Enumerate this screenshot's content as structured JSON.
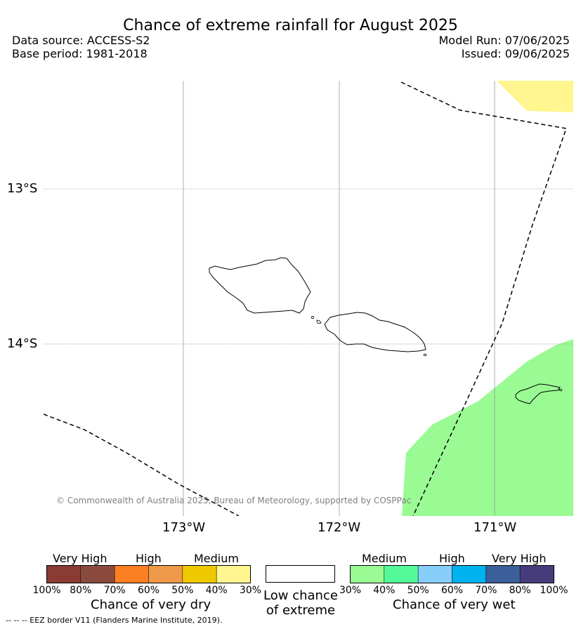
{
  "header": {
    "title": "Chance of extreme rainfall for August 2025",
    "data_source": "Data source: ACCESS-S2",
    "base_period": "Base period: 1981-2018",
    "model_run": "Model Run: 07/06/2025",
    "issued": "Issued: 09/06/2025"
  },
  "map": {
    "lat_labels": [
      "13°S",
      "14°S"
    ],
    "lon_labels": [
      "173°W",
      "172°W",
      "171°W"
    ],
    "copyright": "© Commonwealth of Australia 2025, Bureau of Meteorology, supported by COSPPac",
    "regions": [
      {
        "category": "Medium (30%) chance of very dry",
        "color": "#fff68f",
        "location": "top-right"
      },
      {
        "category": "Medium (30%) chance of very wet",
        "color": "#9afa94",
        "location": "bottom-right"
      }
    ],
    "eez_line": "dashed"
  },
  "legend": {
    "dry": {
      "categories": [
        "Very High",
        "High",
        "Medium"
      ],
      "ticks": [
        "100%",
        "80%",
        "70%",
        "60%",
        "50%",
        "40%",
        "30%"
      ],
      "colors": [
        "#8a3b34",
        "#8a4b3e",
        "#fd7f23",
        "#ee9a4a",
        "#eec900",
        "#fff68f"
      ],
      "label": "Chance of very dry"
    },
    "low": {
      "label": "Low chance of extreme",
      "color": "#ffffff"
    },
    "wet": {
      "categories": [
        "Medium",
        "High",
        "Very High"
      ],
      "ticks": [
        "30%",
        "40%",
        "50%",
        "60%",
        "70%",
        "80%",
        "100%"
      ],
      "colors": [
        "#9afa94",
        "#54fa9a",
        "#87cefa",
        "#00b2ee",
        "#3a5f9b",
        "#473c7b"
      ],
      "label": "Chance of very wet"
    },
    "eez_note": "--  --  -- EEZ border V11 (Flanders Marine Institute, 2019)."
  }
}
